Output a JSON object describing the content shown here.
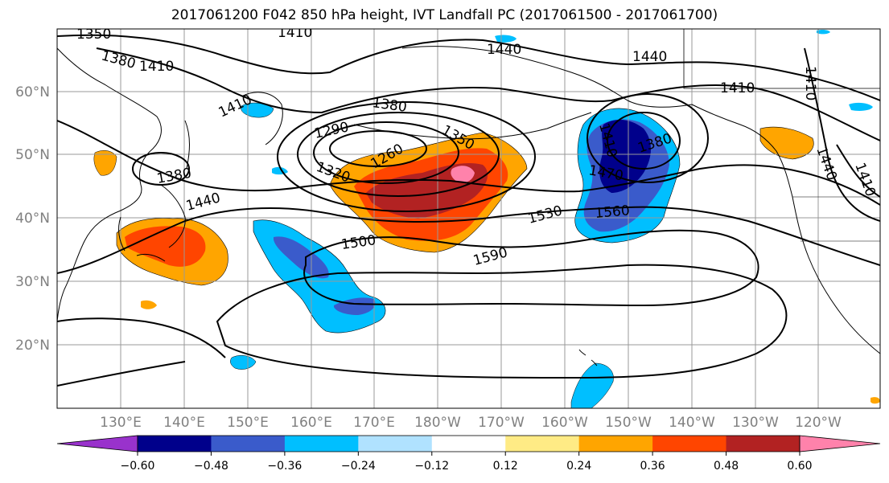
{
  "title": "2017061200 F042 850 hPa height, IVT Landfall PC (2017061500 - 2017061700)",
  "lat_labels": [
    "60°N",
    "50°N",
    "40°N",
    "30°N",
    "20°N"
  ],
  "lon_labels": [
    "130°E",
    "140°E",
    "150°E",
    "160°E",
    "170°E",
    "180°W",
    "170°W",
    "160°W",
    "150°W",
    "140°W",
    "130°W",
    "120°W"
  ],
  "height_contour_labels": [
    "1350",
    "1410",
    "1380",
    "1410",
    "1440",
    "1440",
    "1410",
    "1410",
    "1410",
    "1380",
    "1290",
    "1350",
    "1260",
    "1320",
    "1380",
    "1410",
    "1380",
    "1440",
    "1470",
    "1530",
    "1560",
    "1500",
    "1590",
    "1440",
    "1410"
  ],
  "colorbar": {
    "ticks": [
      "−0.60",
      "−0.48",
      "−0.36",
      "−0.24",
      "−0.12",
      "0.12",
      "0.24",
      "0.36",
      "0.48",
      "0.60"
    ],
    "colors": [
      "#9932CC",
      "#00008B",
      "#3A5BCB",
      "#00BFFF",
      "#B0E2FF",
      "#FFFFFF",
      "#FFEB85",
      "#FFA500",
      "#FF4500",
      "#B22222",
      "#FF82AB"
    ]
  },
  "colors": {
    "axis_text": "#808080",
    "gridline": "#999999",
    "contour": "#000000"
  }
}
